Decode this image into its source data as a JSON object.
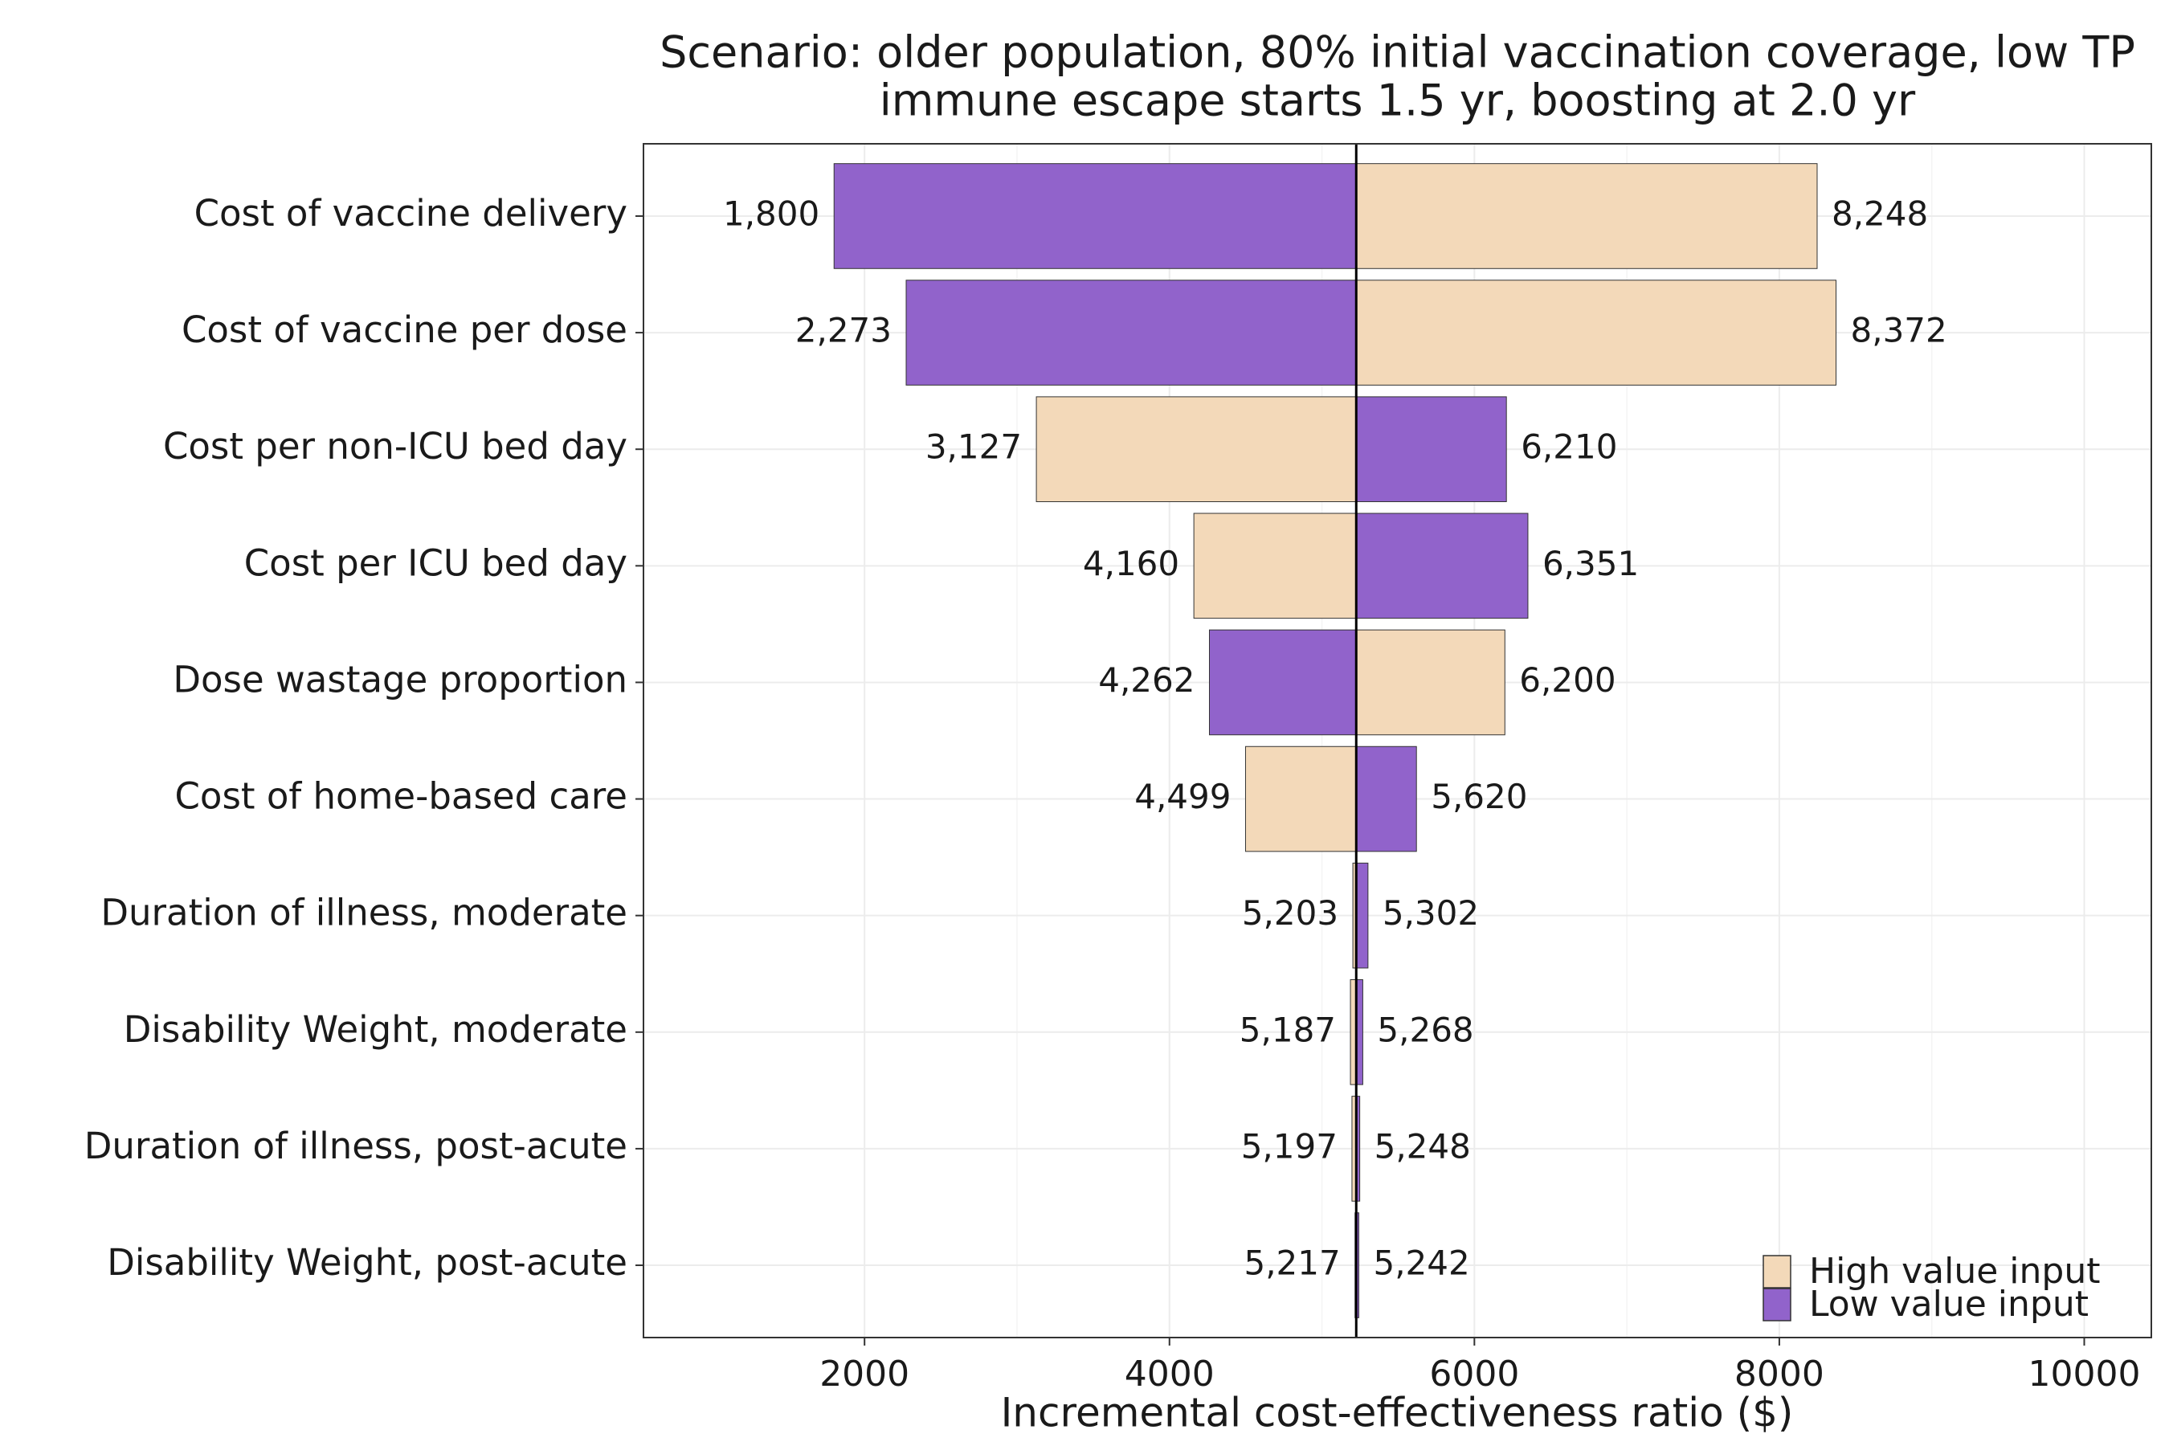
{
  "chart_data": {
    "type": "tornado",
    "title": "Scenario: older population, 80% initial vaccination coverage, low TP",
    "subtitle": "immune escape starts 1.5 yr, boosting at 2.0 yr",
    "x_label": "Incremental cost-effectiveness ratio ($)",
    "categories": [
      "Cost of vaccine delivery",
      "Cost of vaccine per dose",
      "Cost per non-ICU bed day",
      "Cost per ICU bed day",
      "Dose wastage proportion",
      "Cost of home-based care",
      "Duration of illness, moderate",
      "Disability Weight, moderate",
      "Duration of illness, post-acute",
      "Disability Weight, post-acute"
    ],
    "base_value": 5225,
    "series": [
      {
        "name": "High value input",
        "color": "#f3d9b9",
        "values": [
          8248,
          8372,
          3127,
          4160,
          6200,
          4499,
          5203,
          5187,
          5197,
          5217
        ],
        "value_labels": [
          "8,248",
          "8,372",
          "3,127",
          "4,160",
          "6,200",
          "4,499",
          "5,203",
          "5,187",
          "5,197",
          "5,217"
        ]
      },
      {
        "name": "Low value input",
        "color": "#9163cb",
        "values": [
          1800,
          2273,
          6210,
          6351,
          4262,
          5620,
          5302,
          5268,
          5248,
          5242
        ],
        "value_labels": [
          "1,800",
          "2,273",
          "6,210",
          "6,351",
          "4,262",
          "5,620",
          "5,302",
          "5,268",
          "5,248",
          "5,242"
        ]
      }
    ],
    "xlim": [
      550,
      10440
    ],
    "xticks": [
      2000,
      4000,
      6000,
      8000,
      10000
    ],
    "grid": true,
    "legend": "bottom-right"
  }
}
